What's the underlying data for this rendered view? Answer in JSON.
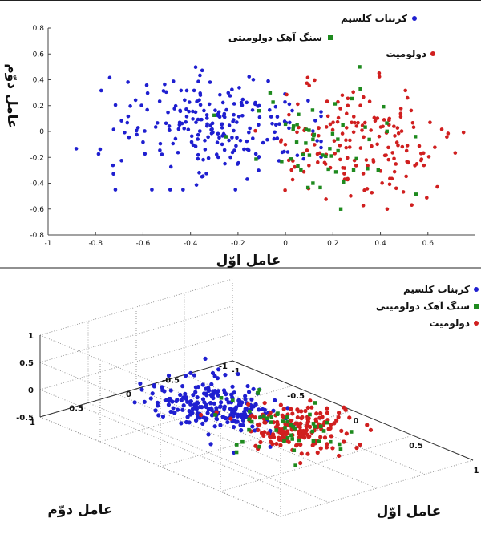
{
  "colors": {
    "calcium_carbonate": "#1f1fd0",
    "dolomitic_limestone": "#1e8a1e",
    "dolomite": "#d01f1f"
  },
  "chart_data": [
    {
      "type": "scatter",
      "title": "",
      "xlabel": "عامل اوّل",
      "ylabel": "عامل دوّم",
      "xlim": [
        -1,
        0.8
      ],
      "ylim": [
        -0.8,
        0.8
      ],
      "xticks": [
        "-1",
        "-0.8",
        "-0.6",
        "-0.4",
        "-0.2",
        "0",
        "0.2",
        "0.4",
        "0.6"
      ],
      "yticks": [
        "0.8",
        "0.6",
        "0.4",
        "0.2",
        "0",
        "-0.2",
        "-0.4",
        "-0.6",
        "-0.8"
      ],
      "legend_position": "top-right",
      "series": [
        {
          "name": "کربنات کلسیم",
          "marker": "circle",
          "color": "#1f1fd0",
          "x_range": [
            -0.9,
            0.15
          ],
          "y_range": [
            -0.45,
            0.65
          ]
        },
        {
          "name": "سنگ آهک دولومیتی",
          "marker": "square",
          "color": "#1e8a1e",
          "x_range": [
            -0.3,
            0.55
          ],
          "y_range": [
            -0.6,
            0.5
          ]
        },
        {
          "name": "دولومیت",
          "marker": "circle",
          "color": "#d01f1f",
          "x_range": [
            -0.2,
            0.75
          ],
          "y_range": [
            -0.6,
            0.55
          ]
        }
      ]
    },
    {
      "type": "scatter",
      "projection": "3d",
      "title": "",
      "xlabel": "عامل اوّل",
      "ylabel": "عامل دوّم",
      "zlabel": "",
      "xticks": [
        "-1",
        "-0.5",
        "0",
        "0.5",
        "1"
      ],
      "yticks": [
        "1",
        "0.5",
        "0",
        "-0.5",
        "-1"
      ],
      "zticks": [
        "1",
        "0.5",
        "0",
        "-0.5"
      ],
      "legend_position": "top-right",
      "series": [
        {
          "name": "کربنات کلسیم",
          "marker": "circle",
          "color": "#1f1fd0"
        },
        {
          "name": "سنگ آهک دولومیتی",
          "marker": "square",
          "color": "#1e8a1e"
        },
        {
          "name": "دولومیت",
          "marker": "circle",
          "color": "#d01f1f"
        }
      ]
    }
  ]
}
